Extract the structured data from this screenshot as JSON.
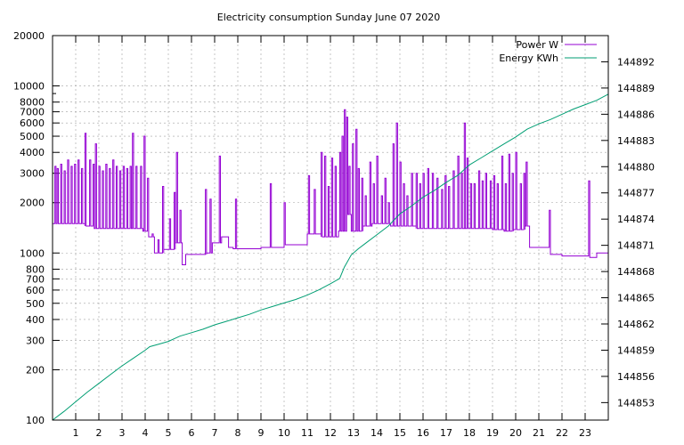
{
  "chart_data": {
    "type": "line",
    "title": "Electricity consumption Sunday June 07 2020",
    "xlabel": "",
    "ylabel": "",
    "y2label": "",
    "xlim": [
      0,
      24
    ],
    "ylim": [
      100,
      20000
    ],
    "y_scale": "log",
    "y2lim": [
      144851,
      144895
    ],
    "x_ticks": [
      1,
      2,
      3,
      4,
      5,
      6,
      7,
      8,
      9,
      10,
      11,
      12,
      13,
      14,
      15,
      16,
      17,
      18,
      19,
      20,
      21,
      22,
      23
    ],
    "y_ticks": [
      {
        "value": 100,
        "label": "100"
      },
      {
        "value": 200,
        "label": "200"
      },
      {
        "value": 300,
        "label": "300"
      },
      {
        "value": 400,
        "label": "400"
      },
      {
        "value": 500,
        "label": "500"
      },
      {
        "value": 600,
        "label": "600"
      },
      {
        "value": 700,
        "label": "700"
      },
      {
        "value": 800,
        "label": "800"
      },
      {
        "value": 1000,
        "label": "1000"
      },
      {
        "value": 2000,
        "label": "2000"
      },
      {
        "value": 3000,
        "label": "3000"
      },
      {
        "value": 4000,
        "label": "4000"
      },
      {
        "value": 5000,
        "label": "5000"
      },
      {
        "value": 6000,
        "label": "6000"
      },
      {
        "value": 7000,
        "label": "7000"
      },
      {
        "value": 8000,
        "label": "8000"
      },
      {
        "value": 10000,
        "label": "10000"
      },
      {
        "value": 20000,
        "label": "20000"
      }
    ],
    "y2_ticks": [
      144853,
      144856,
      144859,
      144862,
      144865,
      144868,
      144871,
      144874,
      144877,
      144880,
      144883,
      144886,
      144889,
      144892
    ],
    "grid": true,
    "legend_position": "top-right",
    "series": [
      {
        "name": "Power W",
        "axis": "left",
        "color": "#9400d3",
        "baseline": [
          [
            0.0,
            1500
          ],
          [
            0.3,
            1500
          ],
          [
            0.9,
            1500
          ],
          [
            1.4,
            1450
          ],
          [
            1.8,
            1400
          ],
          [
            2.3,
            1400
          ],
          [
            2.8,
            1400
          ],
          [
            3.4,
            1400
          ],
          [
            3.9,
            1350
          ],
          [
            4.15,
            1250
          ],
          [
            4.4,
            1000
          ],
          [
            4.8,
            1050
          ],
          [
            5.3,
            1150
          ],
          [
            5.6,
            850
          ],
          [
            5.75,
            980
          ],
          [
            6.3,
            980
          ],
          [
            6.65,
            1000
          ],
          [
            6.9,
            1150
          ],
          [
            7.3,
            1250
          ],
          [
            7.6,
            1080
          ],
          [
            7.8,
            1060
          ],
          [
            8.5,
            1060
          ],
          [
            9.0,
            1080
          ],
          [
            10.0,
            1120
          ],
          [
            10.9,
            1120
          ],
          [
            11.0,
            1300
          ],
          [
            11.5,
            1300
          ],
          [
            11.6,
            1250
          ],
          [
            12.2,
            1250
          ],
          [
            12.35,
            1350
          ],
          [
            12.7,
            1700
          ],
          [
            12.9,
            1350
          ],
          [
            13.1,
            1350
          ],
          [
            13.4,
            1450
          ],
          [
            13.8,
            1500
          ],
          [
            14.2,
            1500
          ],
          [
            14.6,
            1450
          ],
          [
            15.2,
            1450
          ],
          [
            15.7,
            1400
          ],
          [
            16.3,
            1400
          ],
          [
            16.8,
            1400
          ],
          [
            17.3,
            1400
          ],
          [
            17.8,
            1400
          ],
          [
            18.4,
            1400
          ],
          [
            19.0,
            1380
          ],
          [
            19.5,
            1350
          ],
          [
            19.9,
            1380
          ],
          [
            20.4,
            1450
          ],
          [
            20.6,
            1080
          ],
          [
            21.0,
            1080
          ],
          [
            21.5,
            980
          ],
          [
            22.0,
            960
          ],
          [
            22.5,
            960
          ],
          [
            23.0,
            960
          ],
          [
            23.2,
            940
          ],
          [
            23.5,
            1000
          ],
          [
            24.0,
            1050
          ]
        ],
        "spikes": [
          [
            0.1,
            3300
          ],
          [
            0.2,
            3200
          ],
          [
            0.35,
            3400
          ],
          [
            0.5,
            3100
          ],
          [
            0.65,
            3600
          ],
          [
            0.8,
            3300
          ],
          [
            0.95,
            3400
          ],
          [
            1.1,
            3600
          ],
          [
            1.25,
            3200
          ],
          [
            1.4,
            5200
          ],
          [
            1.6,
            3600
          ],
          [
            1.75,
            3400
          ],
          [
            1.85,
            4500
          ],
          [
            2.0,
            3300
          ],
          [
            2.15,
            3100
          ],
          [
            2.3,
            3400
          ],
          [
            2.45,
            3200
          ],
          [
            2.6,
            3600
          ],
          [
            2.75,
            3300
          ],
          [
            2.9,
            3100
          ],
          [
            3.05,
            3300
          ],
          [
            3.2,
            3200
          ],
          [
            3.35,
            3300
          ],
          [
            3.45,
            5200
          ],
          [
            3.6,
            3300
          ],
          [
            3.8,
            3300
          ],
          [
            3.95,
            5000
          ],
          [
            4.1,
            2800
          ],
          [
            4.3,
            1300
          ],
          [
            4.55,
            1200
          ],
          [
            4.75,
            2500
          ],
          [
            5.05,
            1600
          ],
          [
            5.25,
            2300
          ],
          [
            5.35,
            4000
          ],
          [
            5.5,
            1800
          ],
          [
            6.6,
            2400
          ],
          [
            6.8,
            2100
          ],
          [
            7.2,
            3800
          ],
          [
            7.9,
            2100
          ],
          [
            9.4,
            2600
          ],
          [
            10.0,
            2000
          ],
          [
            11.05,
            2900
          ],
          [
            11.3,
            2400
          ],
          [
            11.6,
            4000
          ],
          [
            11.75,
            3800
          ],
          [
            11.9,
            2500
          ],
          [
            12.05,
            3700
          ],
          [
            12.2,
            3300
          ],
          [
            12.4,
            4000
          ],
          [
            12.5,
            5000
          ],
          [
            12.6,
            7200
          ],
          [
            12.7,
            6500
          ],
          [
            12.8,
            3300
          ],
          [
            12.95,
            4500
          ],
          [
            13.1,
            5500
          ],
          [
            13.2,
            3200
          ],
          [
            13.35,
            2800
          ],
          [
            13.5,
            2200
          ],
          [
            13.7,
            3500
          ],
          [
            13.85,
            2600
          ],
          [
            14.0,
            3800
          ],
          [
            14.2,
            2200
          ],
          [
            14.35,
            2800
          ],
          [
            14.5,
            2000
          ],
          [
            14.7,
            4500
          ],
          [
            14.85,
            6000
          ],
          [
            15.0,
            3500
          ],
          [
            15.15,
            2600
          ],
          [
            15.3,
            2200
          ],
          [
            15.5,
            3000
          ],
          [
            15.7,
            3000
          ],
          [
            15.85,
            2600
          ],
          [
            16.0,
            3000
          ],
          [
            16.2,
            3200
          ],
          [
            16.4,
            3000
          ],
          [
            16.6,
            2800
          ],
          [
            16.8,
            2400
          ],
          [
            16.95,
            2900
          ],
          [
            17.1,
            2500
          ],
          [
            17.3,
            3100
          ],
          [
            17.5,
            3800
          ],
          [
            17.65,
            3000
          ],
          [
            17.78,
            6000
          ],
          [
            17.9,
            3700
          ],
          [
            18.05,
            2600
          ],
          [
            18.2,
            2600
          ],
          [
            18.4,
            3100
          ],
          [
            18.55,
            2700
          ],
          [
            18.7,
            3000
          ],
          [
            18.9,
            2700
          ],
          [
            19.05,
            2900
          ],
          [
            19.2,
            2600
          ],
          [
            19.4,
            3800
          ],
          [
            19.55,
            2600
          ],
          [
            19.7,
            3900
          ],
          [
            19.85,
            3000
          ],
          [
            20.0,
            4000
          ],
          [
            20.2,
            2600
          ],
          [
            20.35,
            3000
          ],
          [
            20.45,
            3500
          ],
          [
            21.45,
            1800
          ],
          [
            23.15,
            2700
          ]
        ]
      },
      {
        "name": "Energy KWh",
        "axis": "right",
        "color": "#009e73",
        "points": [
          [
            0.0,
            144851.0
          ],
          [
            0.5,
            144852.0
          ],
          [
            1.0,
            144853.1
          ],
          [
            1.5,
            144854.2
          ],
          [
            2.0,
            144855.2
          ],
          [
            2.5,
            144856.2
          ],
          [
            3.0,
            144857.2
          ],
          [
            3.5,
            144858.1
          ],
          [
            4.0,
            144859.0
          ],
          [
            4.2,
            144859.4
          ],
          [
            4.6,
            144859.7
          ],
          [
            5.0,
            144860.0
          ],
          [
            5.5,
            144860.6
          ],
          [
            6.0,
            144861.0
          ],
          [
            6.5,
            144861.4
          ],
          [
            7.0,
            144861.9
          ],
          [
            7.5,
            144862.3
          ],
          [
            8.0,
            144862.7
          ],
          [
            8.5,
            144863.1
          ],
          [
            9.0,
            144863.6
          ],
          [
            9.5,
            144864.0
          ],
          [
            10.0,
            144864.4
          ],
          [
            10.5,
            144864.8
          ],
          [
            11.0,
            144865.3
          ],
          [
            11.5,
            144865.9
          ],
          [
            12.0,
            144866.6
          ],
          [
            12.4,
            144867.2
          ],
          [
            12.6,
            144868.5
          ],
          [
            12.9,
            144869.9
          ],
          [
            13.2,
            144870.6
          ],
          [
            13.5,
            144871.2
          ],
          [
            14.0,
            144872.2
          ],
          [
            14.5,
            144873.2
          ],
          [
            15.0,
            144874.6
          ],
          [
            15.5,
            144875.5
          ],
          [
            16.0,
            144876.5
          ],
          [
            16.5,
            144877.3
          ],
          [
            17.0,
            144878.2
          ],
          [
            17.5,
            144879.0
          ],
          [
            18.0,
            144880.2
          ],
          [
            18.5,
            144881.0
          ],
          [
            19.0,
            144881.8
          ],
          [
            19.5,
            144882.6
          ],
          [
            20.0,
            144883.4
          ],
          [
            20.5,
            144884.3
          ],
          [
            21.0,
            144884.9
          ],
          [
            21.5,
            144885.4
          ],
          [
            22.0,
            144886.0
          ],
          [
            22.5,
            144886.6
          ],
          [
            23.0,
            144887.1
          ],
          [
            23.5,
            144887.6
          ],
          [
            24.0,
            144888.3
          ]
        ]
      }
    ]
  }
}
